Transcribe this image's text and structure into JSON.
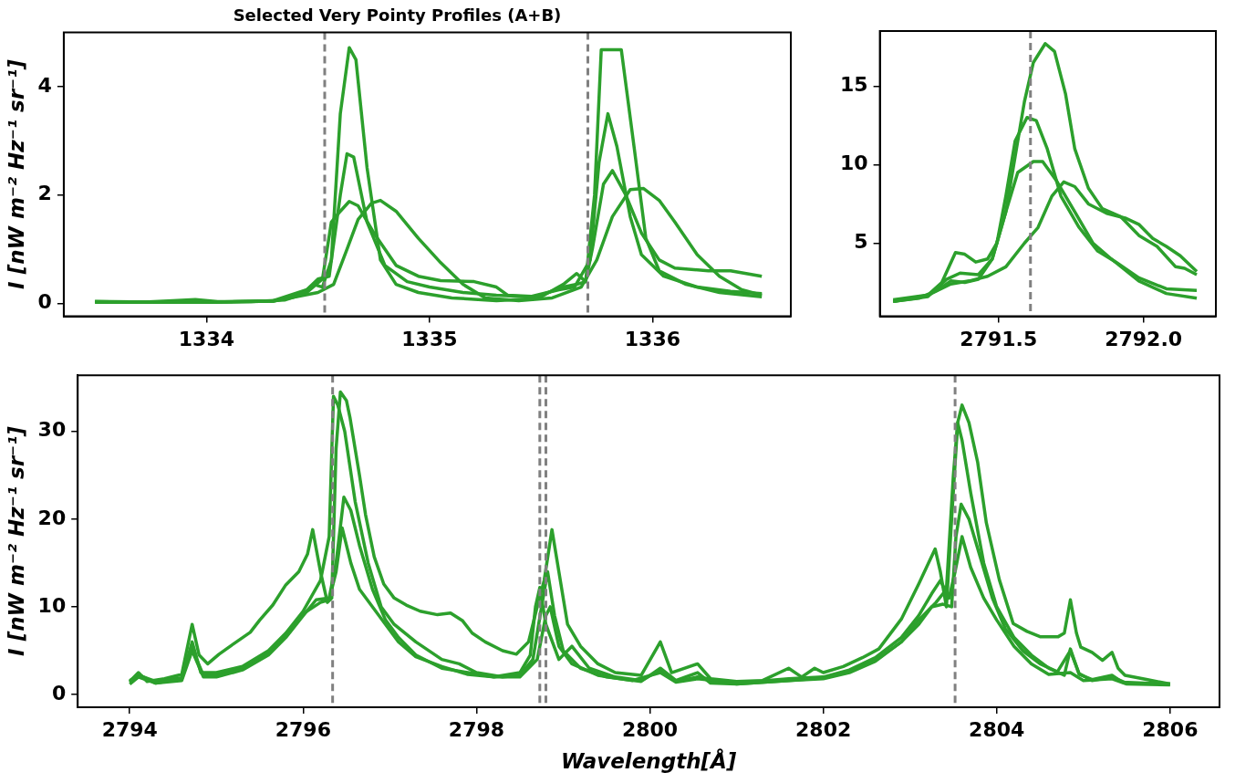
{
  "chart_data": [
    {
      "type": "line",
      "title": "Selected Very Pointy Profiles (A+B)",
      "ylabel": "I [nW m⁻² Hz⁻¹ sr⁻¹]",
      "xlim": [
        1333.36,
        1336.62
      ],
      "xticks": [
        1334,
        1335,
        1336
      ],
      "ylim": [
        -0.24,
        5.0
      ],
      "yticks": [
        0,
        2,
        4
      ],
      "ref_lines": [
        {
          "axis": "x",
          "value": 1334.53,
          "color": "#808080",
          "line_style": "dashed"
        },
        {
          "axis": "x",
          "value": 1335.71,
          "color": "#808080",
          "line_style": "dashed"
        }
      ],
      "series": [
        {
          "color": "#2ca02c",
          "x": [
            1333.5,
            1333.7,
            1333.85,
            1333.95,
            1334.05,
            1334.2,
            1334.35,
            1334.42,
            1334.48,
            1334.52,
            1334.56,
            1334.6,
            1334.64,
            1334.67,
            1334.72,
            1334.78,
            1334.85,
            1334.95,
            1335.1,
            1335.3,
            1335.45,
            1335.6,
            1335.66,
            1335.7,
            1335.74,
            1335.77,
            1335.86,
            1335.92,
            1335.97,
            1336.03,
            1336.15,
            1336.3,
            1336.49
          ],
          "values": [
            0.03,
            0.02,
            0.05,
            0.07,
            0.03,
            0.03,
            0.06,
            0.15,
            0.35,
            0.3,
            0.8,
            3.5,
            4.72,
            4.5,
            2.5,
            0.8,
            0.35,
            0.2,
            0.1,
            0.05,
            0.08,
            0.3,
            0.35,
            0.4,
            2.0,
            4.68,
            4.68,
            2.8,
            1.2,
            0.6,
            0.35,
            0.2,
            0.12
          ]
        },
        {
          "color": "#2ca02c",
          "x": [
            1333.5,
            1334.0,
            1334.3,
            1334.45,
            1334.5,
            1334.55,
            1334.6,
            1334.63,
            1334.66,
            1334.72,
            1334.8,
            1334.9,
            1335.0,
            1335.15,
            1335.3,
            1335.45,
            1335.58,
            1335.65,
            1335.72,
            1335.76,
            1335.8,
            1335.84,
            1335.9,
            1335.95,
            1336.05,
            1336.2,
            1336.35,
            1336.49
          ],
          "values": [
            0.02,
            0.02,
            0.05,
            0.25,
            0.45,
            0.5,
            2.0,
            2.76,
            2.7,
            1.5,
            0.7,
            0.4,
            0.3,
            0.2,
            0.15,
            0.12,
            0.25,
            0.3,
            0.8,
            2.6,
            3.5,
            2.9,
            1.6,
            0.9,
            0.5,
            0.3,
            0.22,
            0.18
          ]
        },
        {
          "color": "#2ca02c",
          "x": [
            1333.5,
            1334.0,
            1334.3,
            1334.45,
            1334.52,
            1334.56,
            1334.6,
            1334.64,
            1334.68,
            1334.75,
            1334.85,
            1334.95,
            1335.05,
            1335.2,
            1335.3,
            1335.35,
            1335.5,
            1335.6,
            1335.66,
            1335.7,
            1335.73,
            1335.78,
            1335.82,
            1335.88,
            1335.95,
            1336.03,
            1336.1,
            1336.25,
            1336.35,
            1336.49
          ],
          "values": [
            0.03,
            0.02,
            0.04,
            0.2,
            0.45,
            1.5,
            1.7,
            1.88,
            1.8,
            1.3,
            0.7,
            0.5,
            0.42,
            0.4,
            0.3,
            0.15,
            0.12,
            0.35,
            0.55,
            0.4,
            1.0,
            2.2,
            2.45,
            2.0,
            1.3,
            0.8,
            0.65,
            0.6,
            0.6,
            0.5
          ]
        },
        {
          "color": "#2ca02c",
          "x": [
            1333.5,
            1334.0,
            1334.3,
            1334.5,
            1334.57,
            1334.63,
            1334.68,
            1334.74,
            1334.78,
            1334.85,
            1334.95,
            1335.05,
            1335.15,
            1335.25,
            1335.4,
            1335.55,
            1335.68,
            1335.75,
            1335.82,
            1335.9,
            1335.96,
            1336.03,
            1336.1,
            1336.2,
            1336.3,
            1336.4,
            1336.49
          ],
          "values": [
            0.03,
            0.02,
            0.04,
            0.2,
            0.35,
            1.0,
            1.55,
            1.85,
            1.9,
            1.7,
            1.2,
            0.75,
            0.35,
            0.1,
            0.05,
            0.1,
            0.3,
            0.8,
            1.6,
            2.1,
            2.12,
            1.9,
            1.5,
            0.9,
            0.5,
            0.25,
            0.15
          ]
        }
      ]
    },
    {
      "type": "line",
      "xlim": [
        2791.09,
        2792.25
      ],
      "xticks": [
        2791.5,
        {
          "value": 2792,
          "label": "2792.0"
        }
      ],
      "ylim": [
        0.35,
        18.5
      ],
      "yticks": [
        5,
        10,
        15
      ],
      "ref_lines": [
        {
          "axis": "x",
          "value": 2791.61,
          "color": "#808080",
          "line_style": "dashed"
        }
      ],
      "series": [
        {
          "color": "#2ca02c",
          "x": [
            2791.136,
            2791.225,
            2791.288,
            2791.335,
            2791.383,
            2791.43,
            2791.478,
            2791.525,
            2791.557,
            2791.589,
            2791.62,
            2791.661,
            2791.693,
            2791.731,
            2791.763,
            2791.81,
            2791.858,
            2791.921,
            2791.984,
            2792.047,
            2792.111,
            2792.142,
            2792.184
          ],
          "values": [
            1.3,
            1.5,
            2.0,
            2.6,
            2.5,
            2.7,
            4,
            7,
            10.5,
            14,
            16.5,
            17.7,
            17.2,
            14.5,
            11,
            8.5,
            7.2,
            6.7,
            5.5,
            4.8,
            3.5,
            3.4,
            3.0
          ]
        },
        {
          "color": "#2ca02c",
          "x": [
            2791.136,
            2791.256,
            2791.304,
            2791.351,
            2791.383,
            2791.421,
            2791.462,
            2791.494,
            2791.525,
            2791.557,
            2791.598,
            2791.63,
            2791.668,
            2791.715,
            2791.778,
            2791.842,
            2791.905,
            2791.984,
            2792.079,
            2792.184
          ],
          "values": [
            1.3,
            1.7,
            2.5,
            4.4,
            4.3,
            3.8,
            4.0,
            5,
            8,
            11.5,
            13,
            12.8,
            11,
            8,
            6,
            4.5,
            3.8,
            2.8,
            2.1,
            2.0
          ]
        },
        {
          "color": "#2ca02c",
          "x": [
            2791.136,
            2791.256,
            2791.32,
            2791.367,
            2791.43,
            2791.478,
            2791.525,
            2791.566,
            2791.62,
            2791.652,
            2791.699,
            2791.763,
            2791.826,
            2791.889,
            2791.984,
            2792.079,
            2792.184
          ],
          "values": [
            1.3,
            1.6,
            2.7,
            3.1,
            3.0,
            4,
            7,
            9.5,
            10.2,
            10.2,
            9,
            7,
            5,
            4,
            2.6,
            1.8,
            1.5
          ]
        },
        {
          "color": "#2ca02c",
          "x": [
            2791.136,
            2791.256,
            2791.335,
            2791.399,
            2791.462,
            2791.525,
            2791.589,
            2791.636,
            2791.684,
            2791.725,
            2791.763,
            2791.81,
            2791.873,
            2791.937,
            2791.984,
            2792.032,
            2792.079,
            2792.127,
            2792.184
          ],
          "values": [
            1.4,
            1.7,
            2.4,
            2.6,
            2.9,
            3.5,
            5,
            6,
            8,
            8.9,
            8.6,
            7.5,
            6.9,
            6.6,
            6.2,
            5.3,
            4.8,
            4.2,
            3.2
          ]
        }
      ]
    },
    {
      "type": "line",
      "xlabel": "Wavelength[Å]",
      "ylabel": "I [nW m⁻² Hz⁻¹ sr⁻¹]",
      "xlim": [
        2793.4,
        2806.57
      ],
      "xticks": [
        2794,
        2796,
        2798,
        2800,
        2802,
        2804,
        2806
      ],
      "ylim": [
        -1.45,
        36.4
      ],
      "yticks": [
        0,
        10,
        20,
        30
      ],
      "ref_lines": [
        {
          "axis": "x",
          "value": 2796.34,
          "color": "#808080",
          "line_style": "dashed"
        },
        {
          "axis": "x",
          "value": 2798.73,
          "color": "#808080",
          "line_style": "dashed"
        },
        {
          "axis": "x",
          "value": 2798.8,
          "color": "#808080",
          "line_style": "dashed"
        },
        {
          "axis": "x",
          "value": 2803.52,
          "color": "#808080",
          "line_style": "dashed"
        }
      ],
      "series": [
        {
          "color": "#2ca02c",
          "x": [
            2794.0,
            2794.1,
            2794.2,
            2794.4,
            2794.6,
            2794.72,
            2794.8,
            2794.9,
            2795.03,
            2795.2,
            2795.39,
            2795.5,
            2795.65,
            2795.8,
            2795.95,
            2796.05,
            2796.11,
            2796.2,
            2796.28,
            2796.33,
            2796.38,
            2796.43,
            2796.5,
            2796.54,
            2796.65,
            2796.72,
            2796.82,
            2796.93,
            2797.05,
            2797.19,
            2797.35,
            2797.55,
            2797.7,
            2797.84,
            2797.95,
            2798.1,
            2798.3,
            2798.46,
            2798.6,
            2798.7,
            2798.78,
            2798.87,
            2798.95,
            2799.05,
            2799.2,
            2799.4,
            2799.6,
            2799.9,
            2800.12,
            2800.25,
            2800.55,
            2800.7,
            2801.0,
            2801.3,
            2801.6,
            2801.75,
            2801.9,
            2802.0,
            2802.23,
            2802.45,
            2802.64,
            2802.9,
            2803.1,
            2803.29,
            2803.35,
            2803.42,
            2803.48,
            2803.55,
            2803.6,
            2803.68,
            2803.78,
            2803.88,
            2804.03,
            2804.19,
            2804.35,
            2804.5,
            2804.71,
            2804.78,
            2804.85,
            2804.92,
            2804.97,
            2805.1,
            2805.22,
            2805.33,
            2805.4,
            2805.48,
            2805.74,
            2806.0
          ],
          "values": [
            1.5,
            2.5,
            1.5,
            1.8,
            2.3,
            8.0,
            4.5,
            3.5,
            4.6,
            5.8,
            7.1,
            8.5,
            10.2,
            12.5,
            14.0,
            16,
            18.8,
            14,
            10.5,
            11,
            28,
            34.5,
            33.5,
            31.6,
            25,
            20.5,
            15.7,
            12.6,
            11,
            10.2,
            9.5,
            9.1,
            9.3,
            8.4,
            7,
            6.0,
            5.0,
            4.6,
            6.0,
            10,
            13,
            18.8,
            14,
            8,
            5.5,
            3.5,
            2.5,
            2.2,
            6.0,
            2.5,
            3.5,
            1.8,
            1.5,
            1.6,
            3.0,
            2.0,
            3.0,
            2.5,
            3.2,
            4.2,
            5.2,
            8.6,
            12.6,
            16.6,
            14,
            10,
            20,
            31,
            33,
            31,
            26.5,
            19.6,
            13.1,
            8.1,
            7.2,
            6.6,
            6.6,
            7,
            10.8,
            7,
            5.4,
            4.8,
            3.9,
            4.8,
            3,
            2.2,
            1.7,
            1.2
          ]
        },
        {
          "color": "#2ca02c",
          "x": [
            2794.0,
            2794.1,
            2794.3,
            2794.6,
            2794.72,
            2794.82,
            2795.0,
            2795.3,
            2795.6,
            2795.8,
            2796.0,
            2796.2,
            2796.3,
            2796.35,
            2796.4,
            2796.48,
            2796.6,
            2796.75,
            2796.9,
            2797.05,
            2797.3,
            2797.6,
            2797.8,
            2798.0,
            2798.3,
            2798.5,
            2798.65,
            2798.75,
            2798.82,
            2798.9,
            2799.0,
            2799.2,
            2799.5,
            2799.9,
            2800.12,
            2800.3,
            2800.55,
            2800.7,
            2801.0,
            2801.6,
            2802.0,
            2802.3,
            2802.6,
            2802.9,
            2803.1,
            2803.3,
            2803.42,
            2803.5,
            2803.55,
            2803.6,
            2803.7,
            2803.85,
            2804.0,
            2804.2,
            2804.4,
            2804.6,
            2804.78,
            2804.85,
            2804.95,
            2805.1,
            2805.33,
            2805.45,
            2806.0
          ],
          "values": [
            1.2,
            2.0,
            1.3,
            1.8,
            6,
            2.5,
            2.5,
            3.2,
            5,
            7,
            9.5,
            13,
            18,
            34,
            33,
            30,
            22,
            15,
            10,
            8,
            6,
            4.0,
            3.5,
            2.5,
            2.0,
            2.2,
            4,
            10,
            14,
            9,
            5,
            3.0,
            2.0,
            1.5,
            3.0,
            1.6,
            2.5,
            1.3,
            1.2,
            1.6,
            1.8,
            2.5,
            3.8,
            6,
            8.5,
            10.5,
            12,
            25,
            31,
            29,
            23,
            15,
            10,
            6.5,
            4.5,
            3,
            2.2,
            5.2,
            2.3,
            1.7,
            2.2,
            1.4,
            1.2
          ]
        },
        {
          "color": "#2ca02c",
          "x": [
            2794.0,
            2794.1,
            2794.3,
            2794.6,
            2794.72,
            2794.85,
            2795.0,
            2795.3,
            2795.6,
            2795.8,
            2796.0,
            2796.15,
            2796.3,
            2796.38,
            2796.47,
            2796.55,
            2796.65,
            2796.8,
            2796.95,
            2797.1,
            2797.3,
            2797.6,
            2797.9,
            2798.2,
            2798.5,
            2798.62,
            2798.68,
            2798.73,
            2798.8,
            2798.95,
            2799.1,
            2799.3,
            2799.6,
            2799.9,
            2800.12,
            2800.3,
            2800.55,
            2801.0,
            2801.6,
            2802.0,
            2802.3,
            2802.6,
            2802.9,
            2803.1,
            2803.25,
            2803.38,
            2803.48,
            2803.53,
            2803.59,
            2803.68,
            2803.8,
            2803.95,
            2804.1,
            2804.3,
            2804.5,
            2804.7,
            2804.85,
            2804.95,
            2805.1,
            2805.33,
            2805.5,
            2806.0
          ],
          "values": [
            1.4,
            2.3,
            1.3,
            1.6,
            5,
            2.0,
            2.0,
            2.8,
            4.5,
            6.5,
            9,
            10.8,
            11,
            15,
            22.5,
            21,
            17,
            12,
            8.5,
            6.5,
            4.5,
            3.0,
            2.5,
            2.0,
            2.5,
            4.5,
            10,
            12.2,
            8,
            4,
            5.5,
            3,
            2.0,
            1.6,
            2.8,
            1.5,
            2.0,
            1.2,
            1.6,
            1.9,
            2.6,
            3.9,
            6,
            8.0,
            10,
            10.3,
            10,
            18,
            21.7,
            20,
            16,
            11,
            7.5,
            5,
            3.5,
            2.6,
            5,
            2.4,
            1.6,
            2.0,
            1.3,
            1.2
          ]
        },
        {
          "color": "#2ca02c",
          "x": [
            2794.0,
            2794.1,
            2794.3,
            2794.6,
            2794.72,
            2794.85,
            2795.0,
            2795.3,
            2795.6,
            2795.8,
            2796.0,
            2796.2,
            2796.3,
            2796.38,
            2796.45,
            2796.55,
            2796.65,
            2796.8,
            2796.95,
            2797.1,
            2797.3,
            2797.6,
            2797.9,
            2798.2,
            2798.5,
            2798.7,
            2798.8,
            2798.85,
            2798.95,
            2799.1,
            2799.4,
            2799.8,
            2800.12,
            2800.3,
            2800.55,
            2801.0,
            2801.6,
            2802.0,
            2802.3,
            2802.6,
            2802.9,
            2803.1,
            2803.25,
            2803.35,
            2803.45,
            2803.52,
            2803.6,
            2803.7,
            2803.85,
            2804.0,
            2804.2,
            2804.4,
            2804.6,
            2804.85,
            2805.0,
            2805.33,
            2805.5,
            2806.0
          ],
          "values": [
            1.6,
            2.2,
            1.5,
            1.9,
            5.2,
            2.2,
            2.3,
            3.0,
            4.7,
            6.7,
            9.2,
            10.5,
            10.8,
            14,
            19,
            15,
            12,
            10,
            8,
            6,
            4.3,
            3.2,
            2.3,
            2.0,
            2.0,
            4,
            9,
            10,
            5.5,
            3.5,
            2.2,
            1.6,
            2.5,
            1.4,
            1.8,
            1.3,
            1.8,
            2.0,
            2.8,
            4.2,
            6.5,
            9,
            11.5,
            13,
            11,
            14,
            18,
            14.5,
            11,
            8.5,
            5.5,
            3.5,
            2.3,
            2.5,
            1.6,
            1.8,
            1.2,
            1.1
          ]
        }
      ]
    }
  ]
}
